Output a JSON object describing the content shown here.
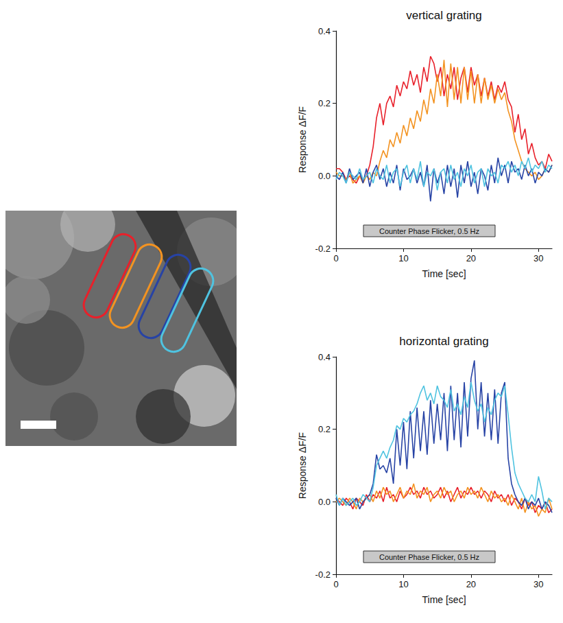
{
  "chart_data": [
    {
      "type": "line",
      "title": "vertical grating",
      "xlabel": "Time [sec]",
      "ylabel": "Response ΔF/F",
      "annotation": "Counter Phase Flicker, 0.5 Hz",
      "grid": false,
      "xlim": [
        0,
        32
      ],
      "xticks": [
        0,
        10,
        20,
        30
      ],
      "ylim": [
        -0.2,
        0.4
      ],
      "yticks": [
        -0.2,
        {
          "value": 0,
          "label": "0.0"
        },
        0.2,
        0.4
      ],
      "x": [
        0,
        0.5,
        1,
        1.5,
        2,
        2.5,
        3,
        3.5,
        4,
        4.5,
        5,
        5.5,
        6,
        6.5,
        7,
        7.5,
        8,
        8.5,
        9,
        9.5,
        10,
        10.5,
        11,
        11.5,
        12,
        12.5,
        13,
        13.5,
        14,
        14.5,
        15,
        15.5,
        16,
        16.5,
        17,
        17.5,
        18,
        18.5,
        19,
        19.5,
        20,
        20.5,
        21,
        21.5,
        22,
        22.5,
        23,
        23.5,
        24,
        24.5,
        25,
        25.5,
        26,
        26.5,
        27,
        27.5,
        28,
        28.5,
        29,
        29.5,
        30,
        30.5,
        31,
        31.5,
        32
      ],
      "series": [
        {
          "color": "#e8202a",
          "values": [
            0.02,
            0.02,
            0.01,
            -0.01,
            0.0,
            -0.01,
            -0.02,
            0.0,
            -0.01,
            0.0,
            0.03,
            0.08,
            0.16,
            0.2,
            0.14,
            0.2,
            0.22,
            0.19,
            0.25,
            0.22,
            0.26,
            0.24,
            0.29,
            0.25,
            0.28,
            0.23,
            0.3,
            0.26,
            0.33,
            0.31,
            0.26,
            0.3,
            0.22,
            0.28,
            0.24,
            0.3,
            0.21,
            0.27,
            0.3,
            0.23,
            0.3,
            0.25,
            0.28,
            0.22,
            0.27,
            0.22,
            0.26,
            0.21,
            0.25,
            0.23,
            0.26,
            0.21,
            0.19,
            0.12,
            0.17,
            0.1,
            0.13,
            0.06,
            0.09,
            0.05,
            0.03,
            0.04,
            0.02,
            0.06,
            0.04
          ]
        },
        {
          "color": "#f39321",
          "values": [
            0.01,
            0.0,
            0.0,
            -0.01,
            0.01,
            -0.02,
            -0.01,
            0.0,
            -0.02,
            0.0,
            -0.01,
            0.01,
            0.0,
            0.04,
            0.07,
            0.05,
            0.1,
            0.08,
            0.12,
            0.09,
            0.14,
            0.11,
            0.16,
            0.13,
            0.18,
            0.15,
            0.21,
            0.17,
            0.24,
            0.2,
            0.28,
            0.22,
            0.32,
            0.19,
            0.31,
            0.21,
            0.3,
            0.2,
            0.3,
            0.21,
            0.29,
            0.2,
            0.28,
            0.2,
            0.27,
            0.21,
            0.25,
            0.2,
            0.24,
            0.21,
            0.23,
            0.18,
            0.15,
            0.1,
            0.07,
            0.04,
            0.02,
            0.01,
            0.0,
            0.01,
            -0.01,
            0.0,
            0.02,
            0.01,
            0.03
          ]
        },
        {
          "color": "#2743a5",
          "values": [
            0.0,
            -0.01,
            0.01,
            -0.02,
            0.02,
            -0.01,
            0.0,
            0.01,
            -0.02,
            0.02,
            -0.03,
            0.01,
            0.03,
            -0.01,
            0.02,
            -0.03,
            0.01,
            -0.02,
            0.03,
            -0.04,
            0.02,
            -0.01,
            0.0,
            0.02,
            -0.02,
            0.01,
            -0.03,
            0.03,
            -0.07,
            0.02,
            -0.02,
            0.01,
            -0.05,
            0.03,
            -0.03,
            0.02,
            -0.06,
            0.03,
            -0.02,
            0.04,
            -0.03,
            0.01,
            -0.05,
            0.02,
            0.0,
            -0.04,
            0.03,
            -0.02,
            0.05,
            0.0,
            0.03,
            -0.02,
            0.04,
            0.01,
            0.02,
            -0.01,
            0.03,
            0.0,
            0.02,
            -0.02,
            0.01,
            0.0,
            0.02,
            0.01,
            0.03
          ]
        },
        {
          "color": "#4fc3e0",
          "values": [
            -0.01,
            0.01,
            0.0,
            -0.02,
            0.01,
            0.0,
            -0.01,
            0.02,
            -0.01,
            0.0,
            0.01,
            -0.02,
            0.02,
            0.0,
            -0.01,
            0.03,
            -0.02,
            0.01,
            0.02,
            -0.03,
            0.01,
            0.03,
            -0.02,
            0.02,
            -0.01,
            0.04,
            -0.03,
            0.01,
            0.0,
            0.02,
            -0.04,
            0.01,
            0.02,
            -0.02,
            0.03,
            -0.01,
            0.01,
            -0.03,
            0.02,
            0.0,
            0.03,
            -0.02,
            0.01,
            0.02,
            -0.03,
            0.02,
            0.0,
            0.01,
            -0.02,
            0.03,
            0.02,
            0.04,
            0.01,
            0.03,
            0.0,
            0.04,
            0.02,
            0.05,
            0.01,
            0.03,
            0.02,
            0.04,
            0.01,
            0.03,
            0.02
          ]
        }
      ]
    },
    {
      "type": "line",
      "title": "horizontal grating",
      "xlabel": "Time [sec]",
      "ylabel": "Response ΔF/F",
      "annotation": "Counter Phase Flicker, 0.5 Hz",
      "grid": false,
      "xlim": [
        0,
        32
      ],
      "xticks": [
        0,
        10,
        20,
        30
      ],
      "ylim": [
        -0.2,
        0.4
      ],
      "yticks": [
        -0.2,
        {
          "value": 0,
          "label": "0.0"
        },
        0.2,
        0.4
      ],
      "x": [
        0,
        0.5,
        1,
        1.5,
        2,
        2.5,
        3,
        3.5,
        4,
        4.5,
        5,
        5.5,
        6,
        6.5,
        7,
        7.5,
        8,
        8.5,
        9,
        9.5,
        10,
        10.5,
        11,
        11.5,
        12,
        12.5,
        13,
        13.5,
        14,
        14.5,
        15,
        15.5,
        16,
        16.5,
        17,
        17.5,
        18,
        18.5,
        19,
        19.5,
        20,
        20.5,
        21,
        21.5,
        22,
        22.5,
        23,
        23.5,
        24,
        24.5,
        25,
        25.5,
        26,
        26.5,
        27,
        27.5,
        28,
        28.5,
        29,
        29.5,
        30,
        30.5,
        31,
        31.5,
        32
      ],
      "series": [
        {
          "color": "#e8202a",
          "values": [
            0.01,
            0.0,
            -0.01,
            0.01,
            0.0,
            -0.02,
            0.01,
            0.0,
            -0.01,
            0.02,
            0.0,
            0.02,
            0.01,
            0.03,
            0.0,
            0.04,
            0.01,
            0.02,
            0.0,
            0.03,
            0.01,
            0.02,
            0.04,
            0.02,
            0.03,
            0.01,
            0.04,
            0.02,
            0.03,
            0.01,
            0.02,
            0.04,
            0.01,
            0.03,
            0.0,
            0.02,
            0.04,
            0.01,
            0.03,
            0.02,
            0.04,
            0.02,
            0.03,
            0.01,
            0.03,
            0.02,
            0.0,
            0.03,
            0.01,
            0.02,
            0.0,
            0.02,
            -0.01,
            0.01,
            0.0,
            -0.02,
            0.01,
            -0.01,
            0.0,
            -0.03,
            -0.01,
            -0.02,
            0.0,
            -0.03,
            -0.02
          ]
        },
        {
          "color": "#f39321",
          "values": [
            0.0,
            0.01,
            0.0,
            -0.01,
            0.01,
            0.0,
            -0.02,
            0.01,
            0.0,
            0.01,
            0.02,
            0.0,
            0.03,
            0.01,
            0.04,
            0.02,
            0.03,
            0.0,
            0.02,
            0.04,
            0.01,
            0.03,
            0.02,
            0.05,
            0.01,
            0.03,
            0.02,
            0.04,
            0.0,
            0.02,
            0.03,
            0.01,
            0.04,
            0.02,
            0.03,
            0.0,
            0.02,
            0.03,
            0.01,
            0.04,
            0.02,
            0.03,
            0.01,
            0.04,
            0.02,
            0.0,
            0.03,
            0.01,
            0.02,
            0.0,
            0.01,
            -0.01,
            0.02,
            0.0,
            -0.02,
            0.01,
            -0.03,
            0.0,
            -0.02,
            -0.01,
            -0.04,
            -0.02,
            -0.03,
            0.01,
            -0.02
          ]
        },
        {
          "color": "#2743a5",
          "values": [
            0.01,
            -0.01,
            0.01,
            0.0,
            -0.01,
            0.0,
            0.01,
            -0.02,
            0.0,
            0.01,
            0.02,
            0.05,
            0.13,
            0.09,
            0.1,
            0.08,
            0.12,
            0.05,
            0.2,
            0.1,
            0.22,
            0.09,
            0.25,
            0.12,
            0.26,
            0.14,
            0.25,
            0.13,
            0.28,
            0.16,
            0.27,
            0.17,
            0.3,
            0.14,
            0.32,
            0.17,
            0.3,
            0.15,
            0.33,
            0.18,
            0.34,
            0.39,
            0.2,
            0.33,
            0.18,
            0.3,
            0.17,
            0.31,
            0.16,
            0.3,
            0.33,
            0.12,
            0.05,
            0.02,
            0.0,
            -0.01,
            0.01,
            -0.02,
            0.0,
            -0.01,
            0.01,
            -0.02,
            0.0,
            -0.01,
            -0.03
          ]
        },
        {
          "color": "#4fc3e0",
          "values": [
            0.02,
            -0.01,
            0.01,
            -0.01,
            0.0,
            0.01,
            -0.01,
            0.0,
            0.02,
            0.01,
            0.0,
            0.04,
            0.1,
            0.12,
            0.14,
            0.12,
            0.15,
            0.17,
            0.21,
            0.2,
            0.23,
            0.22,
            0.24,
            0.25,
            0.27,
            0.3,
            0.32,
            0.28,
            0.3,
            0.27,
            0.32,
            0.29,
            0.28,
            0.26,
            0.31,
            0.25,
            0.27,
            0.24,
            0.29,
            0.26,
            0.33,
            0.28,
            0.25,
            0.27,
            0.22,
            0.26,
            0.24,
            0.28,
            0.3,
            0.29,
            0.32,
            0.24,
            0.15,
            0.08,
            0.05,
            0.03,
            0.01,
            0.0,
            0.02,
            0.0,
            0.07,
            0.03,
            -0.02,
            0.01,
            0.0
          ]
        }
      ]
    }
  ]
}
